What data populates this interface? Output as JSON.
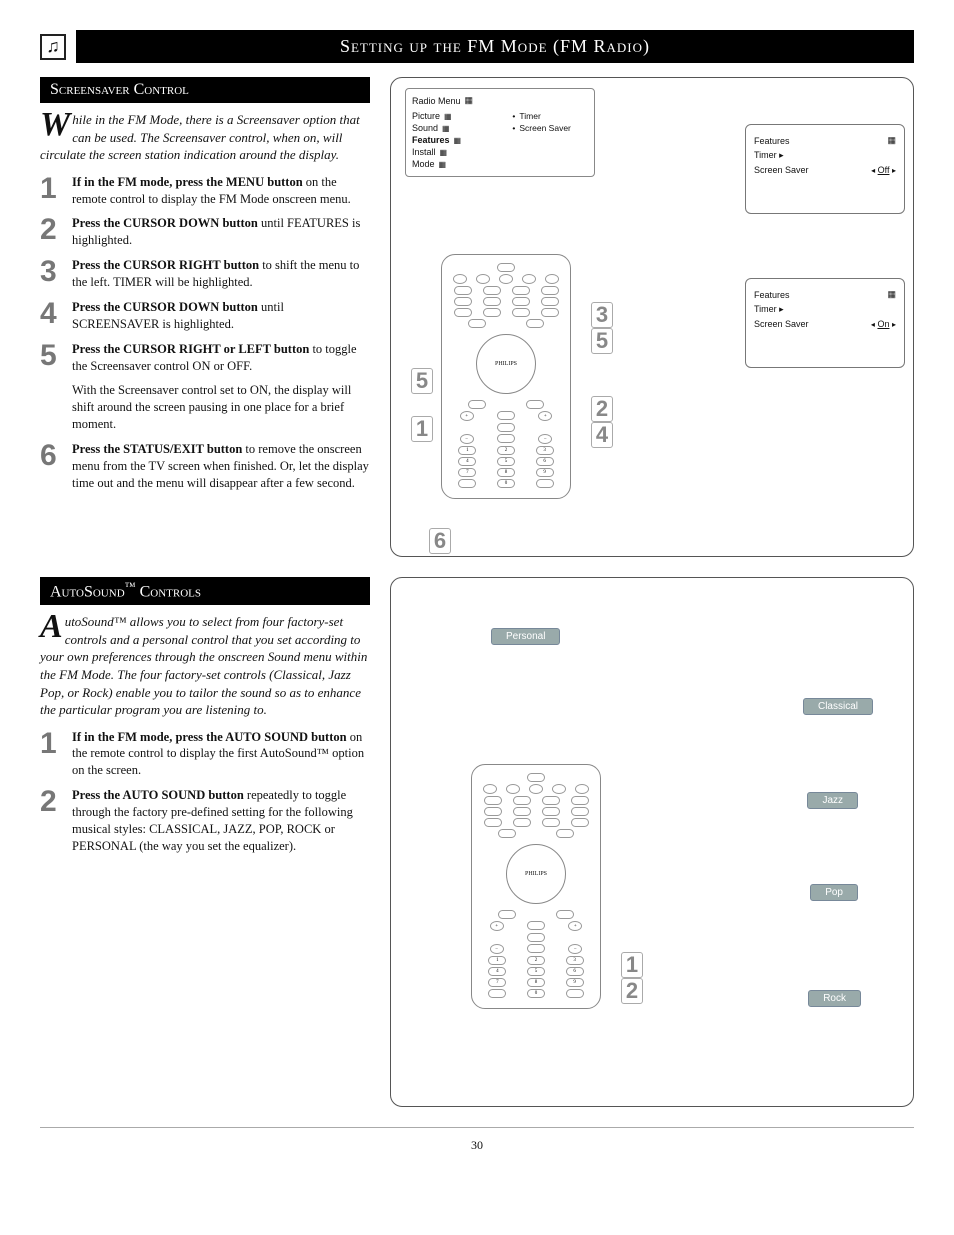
{
  "page_title": "Setting up the FM Mode (FM Radio)",
  "page_number": "30",
  "section1": {
    "heading": "Screensaver Control",
    "intro_dropcap": "W",
    "intro_rest": "hile in the FM Mode, there is a Screensaver option that can be used. The Screensaver control, when on, will circulate the screen station indication around the display.",
    "steps": [
      {
        "num": "1",
        "bold": "If in the FM mode, press the MENU button",
        "rest": " on the remote control to display the FM Mode onscreen menu."
      },
      {
        "num": "2",
        "bold": "Press the CURSOR DOWN button",
        "rest": " until FEATURES is highlighted."
      },
      {
        "num": "3",
        "bold": "Press the CURSOR RIGHT button",
        "rest": " to shift the menu to the left. TIMER will be highlighted."
      },
      {
        "num": "4",
        "bold": "Press the CURSOR DOWN button",
        "rest": " until SCREENSAVER is highlighted."
      },
      {
        "num": "5",
        "bold": "Press the CURSOR RIGHT or LEFT button",
        "rest": " to toggle the Screensaver control ON or OFF."
      },
      {
        "num": "",
        "bold": "",
        "rest": "With the Screensaver control set to ON, the display will shift around the screen pausing in one place for a brief moment."
      },
      {
        "num": "6",
        "bold": "Press the STATUS/EXIT button",
        "rest": " to remove the onscreen menu from the TV screen when finished. Or, let the display time out and the menu will disappear after a few second."
      }
    ],
    "diagram": {
      "radio_menu_title": "Radio Menu",
      "menu_left": [
        "Picture",
        "Sound",
        "Features",
        "Install",
        "Mode"
      ],
      "menu_right": [
        "Timer",
        "Screen Saver"
      ],
      "features_box1": {
        "title": "Features",
        "rows": [
          "Timer ▸",
          "Screen Saver"
        ],
        "value": "Off"
      },
      "features_box2": {
        "title": "Features",
        "rows": [
          "Timer ▸",
          "Screen Saver"
        ],
        "value": "On"
      },
      "callouts": [
        "1",
        "2",
        "3",
        "4",
        "5",
        "6",
        "3",
        "5"
      ]
    }
  },
  "section2": {
    "heading_prefix": "AutoSound",
    "heading_tm": "™",
    "heading_suffix": " Controls",
    "intro_dropcap": "A",
    "intro_rest": "utoSound™ allows you to select from four factory-set controls and a personal control that you set according to your own preferences through the onscreen Sound menu within the FM Mode. The four factory-set controls (Classical, Jazz Pop, or Rock) enable you to tailor the sound so as to enhance the particular program you are listening to.",
    "steps": [
      {
        "num": "1",
        "bold": "If in the FM mode, press the AUTO SOUND button",
        "rest": " on the remote control to display the first AutoSound™ option on the screen."
      },
      {
        "num": "2",
        "bold": "Press the AUTO SOUND button",
        "rest": " repeatedly to toggle through the factory pre-defined setting for the following musical styles: CLASSICAL, JAZZ, POP, ROCK or PERSONAL (the way you set the equalizer)."
      }
    ],
    "diagram": {
      "genres": [
        "Personal",
        "Classical",
        "Jazz",
        "Pop",
        "Rock"
      ],
      "callouts": [
        "1",
        "2"
      ],
      "genre_color": "#8fa3a8"
    }
  },
  "colors": {
    "bar_bg": "#000000",
    "bar_fg": "#ffffff",
    "step_num": "#808080",
    "genre_bg": "#8fa3a8"
  }
}
